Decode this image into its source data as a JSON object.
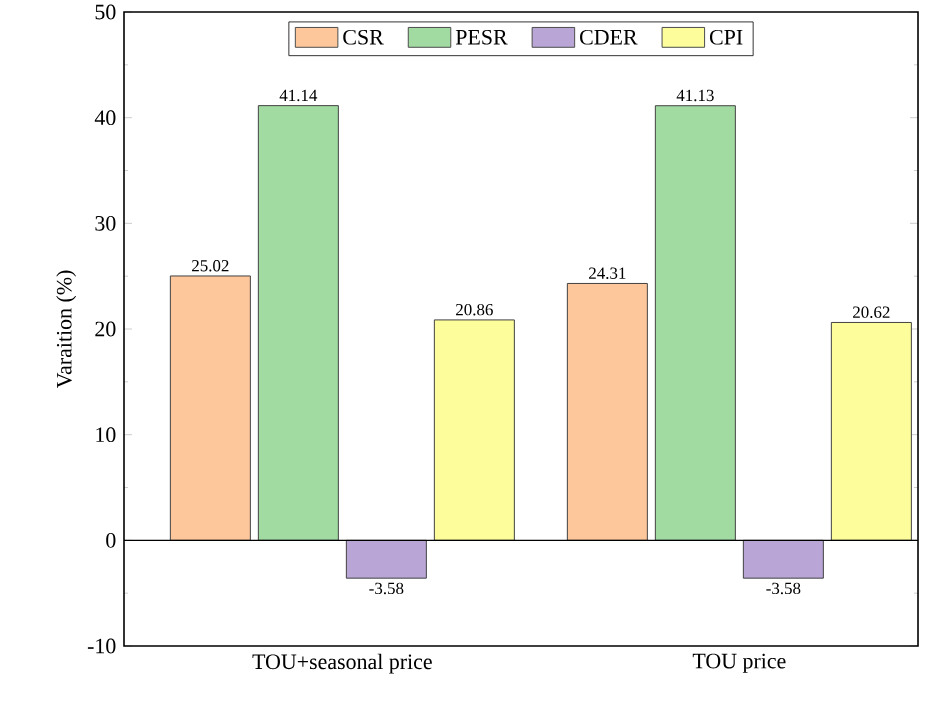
{
  "chart_data": {
    "type": "bar",
    "ylabel": "Varaition (%)",
    "categories": [
      "TOU+seasonal price",
      "TOU price"
    ],
    "series": [
      {
        "name": "CSR",
        "color": "#fdc79b",
        "values": [
          25.02,
          24.31
        ]
      },
      {
        "name": "PESR",
        "color": "#a1dba1",
        "values": [
          41.14,
          41.13
        ]
      },
      {
        "name": "CDER",
        "color": "#b9a6d6",
        "values": [
          -3.58,
          -3.58
        ]
      },
      {
        "name": "CPI",
        "color": "#fdfd9b",
        "values": [
          20.86,
          20.62
        ]
      }
    ],
    "ylim": [
      -10,
      50
    ],
    "yticks": [
      -10,
      0,
      10,
      20,
      30,
      40,
      50
    ],
    "data_labels": true,
    "legend": "top"
  }
}
